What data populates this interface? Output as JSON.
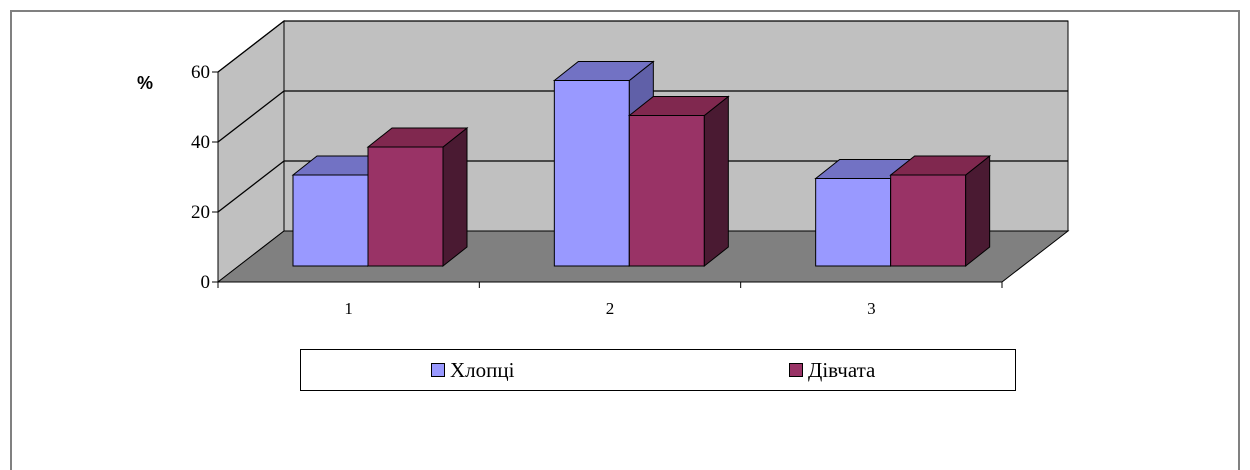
{
  "chart_data": {
    "type": "bar",
    "style": "3d-clustered-column",
    "unit_label": "%",
    "categories": [
      "1",
      "2",
      "3"
    ],
    "series": [
      {
        "name": "Хлопці",
        "values": [
          26,
          53,
          25
        ],
        "color": "#9999ff",
        "side_color": "#6060a8",
        "top_color": "#7272c4"
      },
      {
        "name": "Дівчата",
        "values": [
          34,
          43,
          26
        ],
        "color": "#993366",
        "side_color": "#4a1a32",
        "top_color": "#80284f"
      }
    ],
    "y_ticks": [
      "0",
      "20",
      "40",
      "60"
    ],
    "ylim": [
      0,
      60
    ],
    "grid": true,
    "legend_position": "bottom",
    "colors": {
      "wall": "#c0c0c0",
      "floor": "#808080",
      "frame": "#808080"
    }
  }
}
